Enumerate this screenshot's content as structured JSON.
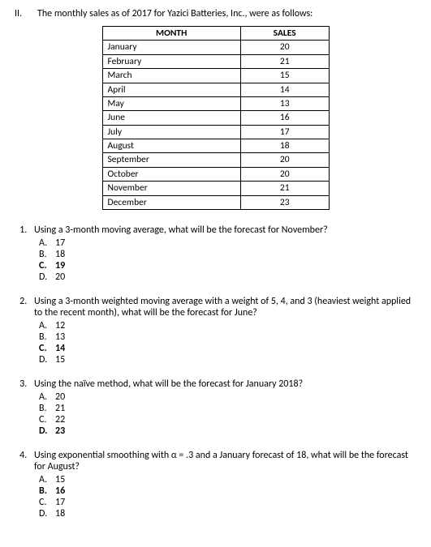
{
  "header": {
    "roman": "II.",
    "statement": "The monthly sales as of 2017 for Yazici Batteries, Inc., were as follows:"
  },
  "table": {
    "columns": [
      "MONTH",
      "SALES"
    ],
    "rows": [
      [
        "January",
        "20"
      ],
      [
        "February",
        "21"
      ],
      [
        "March",
        "15"
      ],
      [
        "April",
        "14"
      ],
      [
        "May",
        "13"
      ],
      [
        "June",
        "16"
      ],
      [
        "July",
        "17"
      ],
      [
        "August",
        "18"
      ],
      [
        "September",
        "20"
      ],
      [
        "October",
        "20"
      ],
      [
        "November",
        "21"
      ],
      [
        "December",
        "23"
      ]
    ]
  },
  "questions": [
    {
      "text": "Using a 3-month moving average, what will be the forecast for November?",
      "bold_index": 2,
      "choices": [
        {
          "letter": "A.",
          "value": "17"
        },
        {
          "letter": "B.",
          "value": "18"
        },
        {
          "letter": "C.",
          "value": "19"
        },
        {
          "letter": "D.",
          "value": "20"
        }
      ]
    },
    {
      "text": "Using a 3-month weighted moving average with a weight of 5, 4, and 3 (heaviest weight applied to the recent month), what will be the forecast for June?",
      "bold_index": 2,
      "choices": [
        {
          "letter": "A.",
          "value": "12"
        },
        {
          "letter": "B.",
          "value": "13"
        },
        {
          "letter": "C.",
          "value": "14"
        },
        {
          "letter": "D.",
          "value": "15"
        }
      ]
    },
    {
      "text": "Using the naïve method, what will be the forecast for January 2018?",
      "bold_index": 3,
      "choices": [
        {
          "letter": "A.",
          "value": "20"
        },
        {
          "letter": "B.",
          "value": "21"
        },
        {
          "letter": "C.",
          "value": "22"
        },
        {
          "letter": "D.",
          "value": "23"
        }
      ]
    },
    {
      "text": "Using exponential smoothing with α = .3 and a January forecast of 18, what will be the forecast for August?",
      "bold_index": 1,
      "choices": [
        {
          "letter": "A.",
          "value": "15"
        },
        {
          "letter": "B.",
          "value": "16"
        },
        {
          "letter": "C.",
          "value": "17"
        },
        {
          "letter": "D.",
          "value": "18"
        }
      ]
    }
  ]
}
